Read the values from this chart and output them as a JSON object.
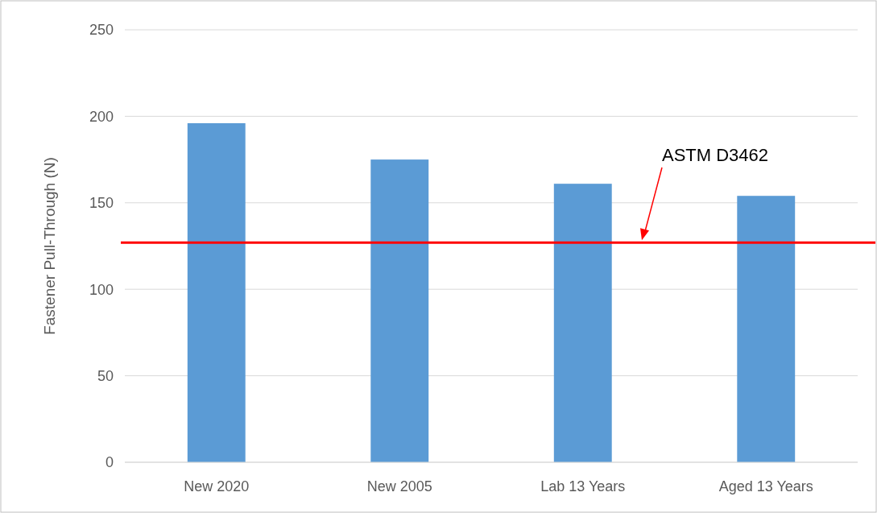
{
  "chart_data": {
    "type": "bar",
    "ylabel": "Fastener Pull-Through (N)",
    "categories": [
      "New 2020",
      "New 2005",
      "Lab 13 Years",
      "Aged 13 Years"
    ],
    "values": [
      196,
      175,
      161,
      154
    ],
    "color": "#5b9bd5",
    "ylim": [
      0,
      250
    ],
    "yticks": [
      0,
      50,
      100,
      150,
      200,
      250
    ],
    "grid": "y",
    "annotations": [
      "ASTM D3462"
    ],
    "ref_lines": [
      {
        "axis": "y",
        "value": 127,
        "color": "#ff0000",
        "line_style": "solid"
      }
    ]
  }
}
